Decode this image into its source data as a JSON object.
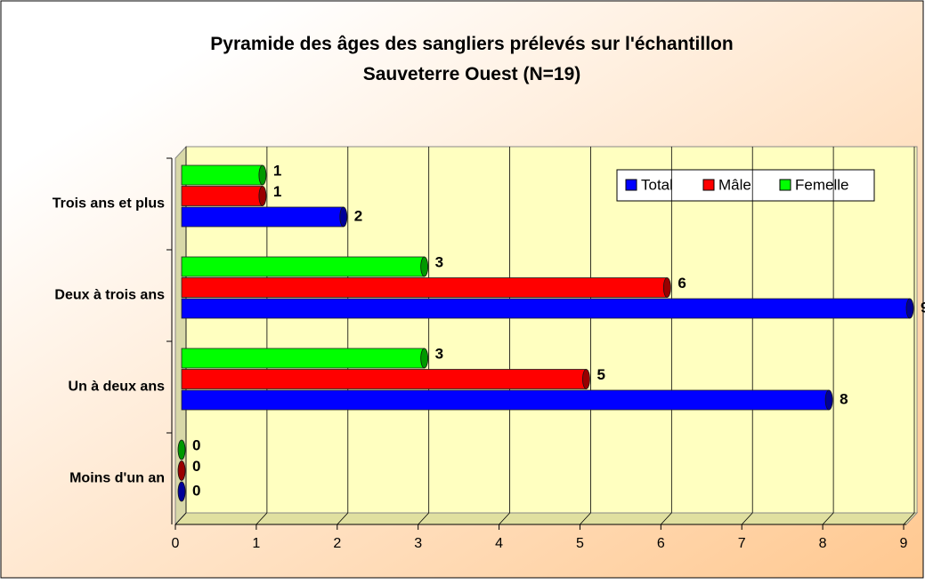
{
  "chart_data": {
    "type": "bar",
    "orientation": "horizontal",
    "title": "Pyramide des âges des sangliers prélevés sur l'échantillon Sauveterre Ouest (N=19)",
    "categories": [
      "Trois ans et plus",
      "Deux à trois ans",
      "Un à deux ans",
      "Moins d'un an"
    ],
    "series": [
      {
        "name": "Total",
        "color": "#0000ff",
        "values": [
          2,
          9,
          8,
          0
        ]
      },
      {
        "name": "Mâle",
        "color": "#ff0000",
        "values": [
          1,
          6,
          5,
          0
        ]
      },
      {
        "name": "Femelle",
        "color": "#00ff00",
        "values": [
          1,
          3,
          3,
          0
        ]
      }
    ],
    "xlim": [
      0,
      9
    ],
    "xticks": [
      0,
      1,
      2,
      3,
      4,
      5,
      6,
      7,
      8,
      9
    ],
    "grid": true,
    "legend": "top-right"
  }
}
